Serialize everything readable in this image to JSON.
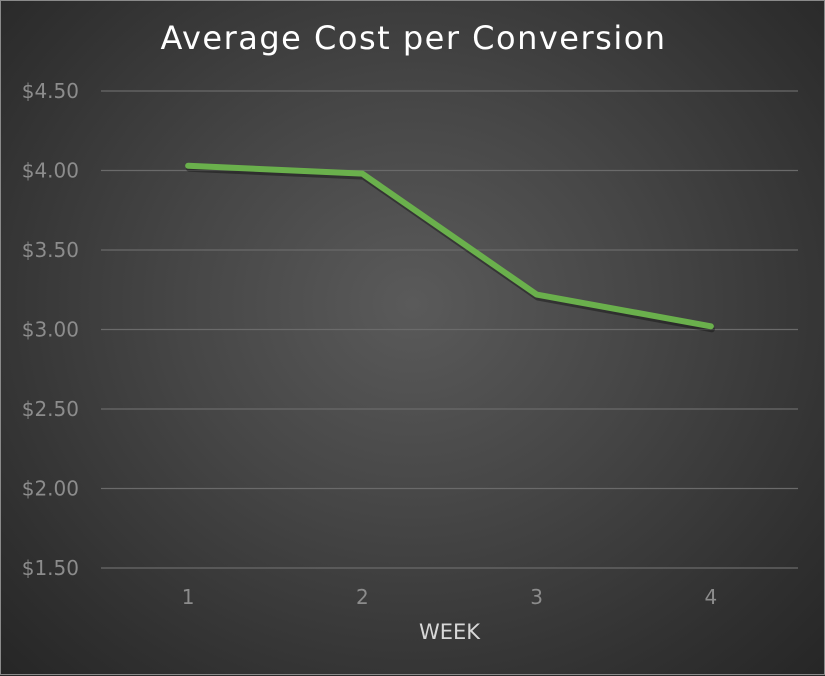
{
  "chart_data": {
    "type": "line",
    "title": "Average Cost per Conversion",
    "xlabel": "WEEK",
    "ylabel": "",
    "categories": [
      "1",
      "2",
      "3",
      "4"
    ],
    "series": [
      {
        "values": [
          4.03,
          3.98,
          3.22,
          3.02
        ]
      }
    ],
    "ylim": [
      1.5,
      4.5
    ],
    "y_ticks": [
      "$1.50",
      "$2.00",
      "$2.50",
      "$3.00",
      "$3.50",
      "$4.00",
      "$4.50"
    ],
    "y_tick_values": [
      1.5,
      2.0,
      2.5,
      3.0,
      3.5,
      4.0,
      4.5
    ],
    "grid": true,
    "legend": "none",
    "colors": {
      "line": "#6ab04c",
      "background": "#3f3f3f",
      "grid": "#6a6a6a",
      "tick_text": "#8c8c8c"
    }
  }
}
